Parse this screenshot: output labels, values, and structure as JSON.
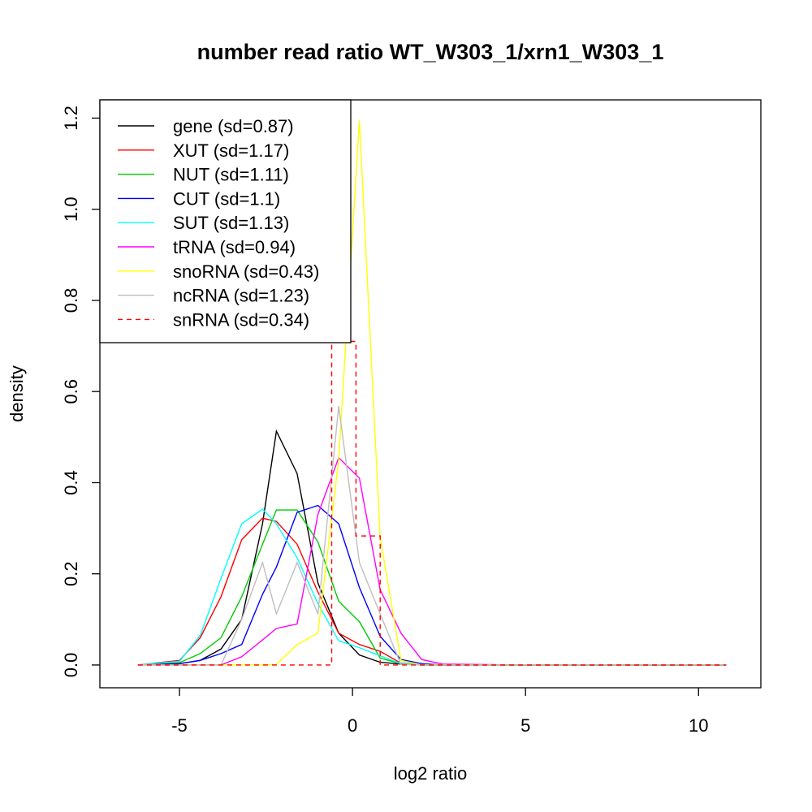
{
  "chart_data": {
    "type": "line",
    "title": "number read ratio WT_W303_1/xrn1_W303_1",
    "xlabel": "log2 ratio",
    "ylabel": "density",
    "xlim": [
      -7.3,
      11.8
    ],
    "ylim": [
      -0.05,
      1.24
    ],
    "xticks": [
      -5,
      0,
      5,
      10
    ],
    "yticks": [
      0.0,
      0.2,
      0.4,
      0.6,
      0.8,
      1.0,
      1.2
    ],
    "xtick_labels": [
      "-5",
      "0",
      "5",
      "10"
    ],
    "ytick_labels": [
      "0.0",
      "0.2",
      "0.4",
      "0.6",
      "0.8",
      "1.0",
      "1.2"
    ],
    "legend_position": "top-left",
    "grid": false,
    "series": [
      {
        "name": "gene (sd=0.87)",
        "color": "#000000",
        "dash": "solid",
        "x": [
          -6.2,
          -5.0,
          -4.4,
          -3.8,
          -3.2,
          -2.6,
          -2.2,
          -1.6,
          -1.0,
          -0.4,
          0.2,
          0.8,
          1.4,
          2.0,
          3.0,
          5.0,
          10.8
        ],
        "y": [
          0,
          0.003,
          0.01,
          0.035,
          0.1,
          0.31,
          0.513,
          0.42,
          0.18,
          0.07,
          0.022,
          0.006,
          0.002,
          0,
          0,
          0,
          0
        ]
      },
      {
        "name": "XUT (sd=1.17)",
        "color": "#ff0000",
        "dash": "solid",
        "x": [
          -6.2,
          -5.0,
          -4.4,
          -3.8,
          -3.2,
          -2.6,
          -2.2,
          -1.6,
          -1.0,
          -0.4,
          0.2,
          0.8,
          1.4,
          2.0,
          2.6,
          5.0,
          10.8
        ],
        "y": [
          0,
          0.01,
          0.06,
          0.15,
          0.275,
          0.322,
          0.315,
          0.265,
          0.16,
          0.07,
          0.045,
          0.03,
          0.004,
          0.001,
          0,
          0,
          0
        ]
      },
      {
        "name": "NUT (sd=1.11)",
        "color": "#00cd00",
        "dash": "solid",
        "x": [
          -6.2,
          -5.0,
          -4.4,
          -3.8,
          -3.2,
          -2.6,
          -2.2,
          -1.6,
          -1.0,
          -0.4,
          0.2,
          0.8,
          1.4,
          2.0,
          2.6,
          5.0,
          10.8
        ],
        "y": [
          0,
          0.005,
          0.025,
          0.06,
          0.15,
          0.265,
          0.34,
          0.34,
          0.27,
          0.14,
          0.095,
          0.015,
          0.003,
          0,
          0,
          0,
          0
        ]
      },
      {
        "name": "CUT (sd=1.1)",
        "color": "#0000ff",
        "dash": "solid",
        "x": [
          -6.2,
          -5.0,
          -4.4,
          -3.8,
          -3.2,
          -2.6,
          -2.2,
          -1.6,
          -1.0,
          -0.4,
          0.2,
          0.8,
          1.4,
          2.0,
          2.6,
          5.0,
          10.8
        ],
        "y": [
          0,
          0.003,
          0.01,
          0.025,
          0.045,
          0.155,
          0.215,
          0.335,
          0.35,
          0.31,
          0.17,
          0.063,
          0.012,
          0.003,
          0,
          0,
          0
        ]
      },
      {
        "name": "SUT (sd=1.13)",
        "color": "#00ffff",
        "dash": "solid",
        "x": [
          -6.2,
          -5.0,
          -4.4,
          -3.8,
          -3.2,
          -2.6,
          -2.2,
          -1.6,
          -1.0,
          -0.4,
          0.2,
          0.8,
          1.4,
          2.0,
          2.6,
          5.0,
          10.8
        ],
        "y": [
          0,
          0.008,
          0.065,
          0.19,
          0.31,
          0.342,
          0.31,
          0.235,
          0.135,
          0.053,
          0.038,
          0.02,
          0.003,
          0.001,
          0,
          0,
          0
        ]
      },
      {
        "name": "tRNA (sd=0.94)",
        "color": "#ff00ff",
        "dash": "solid",
        "x": [
          -6.2,
          -4.4,
          -3.8,
          -3.2,
          -2.6,
          -2.2,
          -1.6,
          -1.0,
          -0.4,
          0.2,
          0.8,
          1.4,
          2.0,
          2.6,
          5.0,
          10.8
        ],
        "y": [
          0,
          0,
          0,
          0.018,
          0.055,
          0.08,
          0.09,
          0.33,
          0.455,
          0.41,
          0.165,
          0.07,
          0.012,
          0.002,
          0,
          0
        ]
      },
      {
        "name": "snoRNA (sd=0.43)",
        "color": "#ffff00",
        "dash": "solid",
        "x": [
          -6.2,
          -2.6,
          -2.2,
          -1.6,
          -1.0,
          -0.4,
          0.2,
          0.8,
          1.4,
          2.0,
          5.0,
          10.8
        ],
        "y": [
          0,
          0,
          0.001,
          0.045,
          0.07,
          0.45,
          1.195,
          0.28,
          0.01,
          0,
          0,
          0
        ]
      },
      {
        "name": "ncRNA (sd=1.23)",
        "color": "#bebebe",
        "dash": "solid",
        "x": [
          -6.2,
          -5.0,
          -4.4,
          -3.8,
          -3.2,
          -2.6,
          -2.2,
          -1.6,
          -1.0,
          -0.4,
          0.2,
          0.8,
          1.4,
          2.0,
          5.0,
          10.8
        ],
        "y": [
          0,
          0,
          0,
          0,
          0.1,
          0.225,
          0.112,
          0.225,
          0.112,
          0.568,
          0.225,
          0.112,
          0.001,
          0,
          0,
          0
        ]
      },
      {
        "name": "snRNA (sd=0.34)",
        "color": "#ff0000",
        "dash": "dashed",
        "x": [
          -6.2,
          -1.9,
          -1.9,
          -0.6,
          -0.6,
          0.1,
          0.1,
          0.8,
          0.8,
          1.3,
          1.3,
          10.8
        ],
        "y": [
          0,
          0,
          0,
          0,
          0.71,
          0.71,
          0.283,
          0.283,
          0.0,
          0,
          0,
          0
        ]
      }
    ]
  }
}
